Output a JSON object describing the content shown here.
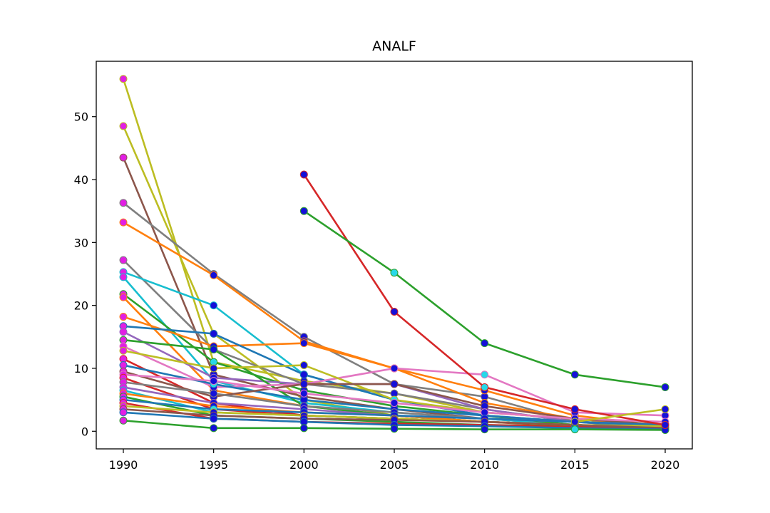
{
  "chart_data": {
    "type": "line",
    "title": "ANALF",
    "xlabel": "",
    "ylabel": "",
    "x": [
      1990,
      1995,
      2000,
      2005,
      2010,
      2015,
      2020
    ],
    "x_ticks": [
      "1990",
      "1995",
      "2000",
      "2005",
      "2010",
      "2015",
      "2020"
    ],
    "y_ticks": [
      "0",
      "10",
      "20",
      "30",
      "40",
      "50"
    ],
    "xlim": [
      1988.5,
      2021.5
    ],
    "ylim": [
      -2.8,
      58.8
    ],
    "grid": false,
    "legend": false,
    "marker_colors": {
      "start": "#e11fe3",
      "default": "#1510d8",
      "alt": "#27d8e8"
    },
    "series": [
      {
        "color": "#bcbd22",
        "values": [
          56.0,
          11.0,
          8.0,
          6.0,
          3.0,
          2.0,
          0.5
        ]
      },
      {
        "color": "#bcbd22",
        "values": [
          48.5,
          15.5,
          5.0,
          2.5,
          1.5,
          1.0,
          0.5
        ]
      },
      {
        "color": "#8c564b",
        "values": [
          43.5,
          9.0,
          5.5,
          3.5,
          2.0,
          1.0,
          0.5
        ]
      },
      {
        "color": "#7f7f7f",
        "values": [
          36.3,
          25.0,
          15.0,
          7.5,
          5.5,
          1.5,
          1.0
        ]
      },
      {
        "color": "#ff7f0e",
        "values": [
          33.2,
          24.8,
          14.3,
          10.0,
          6.5,
          2.5,
          0.8
        ]
      },
      {
        "color": "#7f7f7f",
        "values": [
          27.2,
          13.0,
          7.5,
          6.0,
          3.5,
          1.5,
          0.5
        ]
      },
      {
        "color": "#17becf",
        "values": [
          25.3,
          20.0,
          9.0,
          5.0,
          2.5,
          1.0,
          0.5
        ]
      },
      {
        "color": "#17becf",
        "values": [
          24.5,
          8.0,
          4.5,
          3.0,
          2.0,
          1.0,
          0.5
        ]
      },
      {
        "color": "#2ca02c",
        "values": [
          21.8,
          11.0,
          6.5,
          4.0,
          2.5,
          1.0,
          0.5
        ]
      },
      {
        "color": "#ff7f0e",
        "values": [
          21.3,
          6.5,
          4.0,
          2.5,
          1.5,
          1.0,
          0.3
        ]
      },
      {
        "color": "#ff7f0e",
        "values": [
          18.2,
          13.5,
          14.0,
          10.0,
          4.5,
          2.0,
          0.7
        ]
      },
      {
        "color": "#1f77b4",
        "values": [
          16.7,
          15.5,
          9.0,
          5.0,
          2.5,
          1.5,
          0.5
        ]
      },
      {
        "color": "#9467bd",
        "values": [
          15.8,
          8.5,
          7.5,
          7.5,
          3.5,
          1.5,
          1.0
        ]
      },
      {
        "color": "#2ca02c",
        "values": [
          14.5,
          13.0,
          4.0,
          2.5,
          1.5,
          1.0,
          0.5
        ]
      },
      {
        "color": "#e377c2",
        "values": [
          13.5,
          7.0,
          7.5,
          10.0,
          9.0,
          3.0,
          2.5
        ]
      },
      {
        "color": "#bcbd22",
        "values": [
          12.8,
          10.0,
          10.5,
          5.0,
          3.0,
          2.0,
          1.0
        ]
      },
      {
        "color": "#d62728",
        "values": [
          11.5,
          4.5,
          2.5,
          2.0,
          1.5,
          1.0,
          0.5
        ]
      },
      {
        "color": "#1f77b4",
        "values": [
          10.5,
          7.5,
          5.0,
          3.5,
          2.5,
          1.5,
          1.0
        ]
      },
      {
        "color": "#8c564b",
        "values": [
          9.5,
          5.5,
          7.5,
          7.5,
          4.0,
          2.0,
          1.0
        ]
      },
      {
        "color": "#e377c2",
        "values": [
          9.0,
          8.0,
          6.0,
          4.5,
          3.0,
          2.0,
          1.5
        ]
      },
      {
        "color": "#d62728",
        "values": [
          8.5,
          3.5,
          2.5,
          2.0,
          1.5,
          0.8,
          0.3
        ]
      },
      {
        "color": "#7f7f7f",
        "values": [
          7.8,
          6.0,
          4.0,
          3.0,
          2.0,
          1.5,
          1.0
        ]
      },
      {
        "color": "#9467bd",
        "values": [
          7.0,
          4.5,
          3.5,
          2.5,
          2.0,
          1.5,
          1.0
        ]
      },
      {
        "color": "#17becf",
        "values": [
          6.5,
          3.0,
          2.5,
          2.0,
          1.5,
          1.0,
          0.5
        ]
      },
      {
        "color": "#ff7f0e",
        "values": [
          6.0,
          4.0,
          3.0,
          2.5,
          1.5,
          1.0,
          0.5
        ]
      },
      {
        "color": "#2ca02c",
        "values": [
          5.5,
          2.5,
          2.0,
          1.5,
          1.0,
          0.8,
          0.5
        ]
      },
      {
        "color": "#1f77b4",
        "values": [
          5.0,
          3.5,
          3.0,
          2.5,
          2.0,
          1.5,
          1.0
        ]
      },
      {
        "color": "#d62728",
        "values": [
          4.5,
          2.0,
          1.5,
          1.2,
          1.0,
          0.7,
          0.3
        ]
      },
      {
        "color": "#bcbd22",
        "values": [
          4.0,
          3.0,
          2.5,
          2.0,
          1.5,
          1.0,
          0.8
        ]
      },
      {
        "color": "#8c564b",
        "values": [
          3.5,
          2.5,
          2.0,
          1.8,
          1.5,
          1.0,
          0.5
        ]
      },
      {
        "color": "#1f77b4",
        "values": [
          3.0,
          2.0,
          1.5,
          1.0,
          0.8,
          0.5,
          0.3
        ]
      },
      {
        "color": "#2ca02c",
        "values": [
          1.7,
          0.5,
          0.5,
          0.4,
          0.3,
          0.3,
          0.2
        ]
      },
      {
        "color": "#d62728",
        "values": [
          null,
          null,
          40.8,
          19.0,
          7.0,
          3.5,
          1.0
        ]
      },
      {
        "color": "#2ca02c",
        "values": [
          null,
          null,
          35.0,
          25.2,
          14.0,
          9.0,
          7.0
        ]
      },
      {
        "color": "#bcbd22",
        "values": [
          null,
          null,
          null,
          null,
          null,
          1.5,
          3.5
        ]
      }
    ]
  }
}
